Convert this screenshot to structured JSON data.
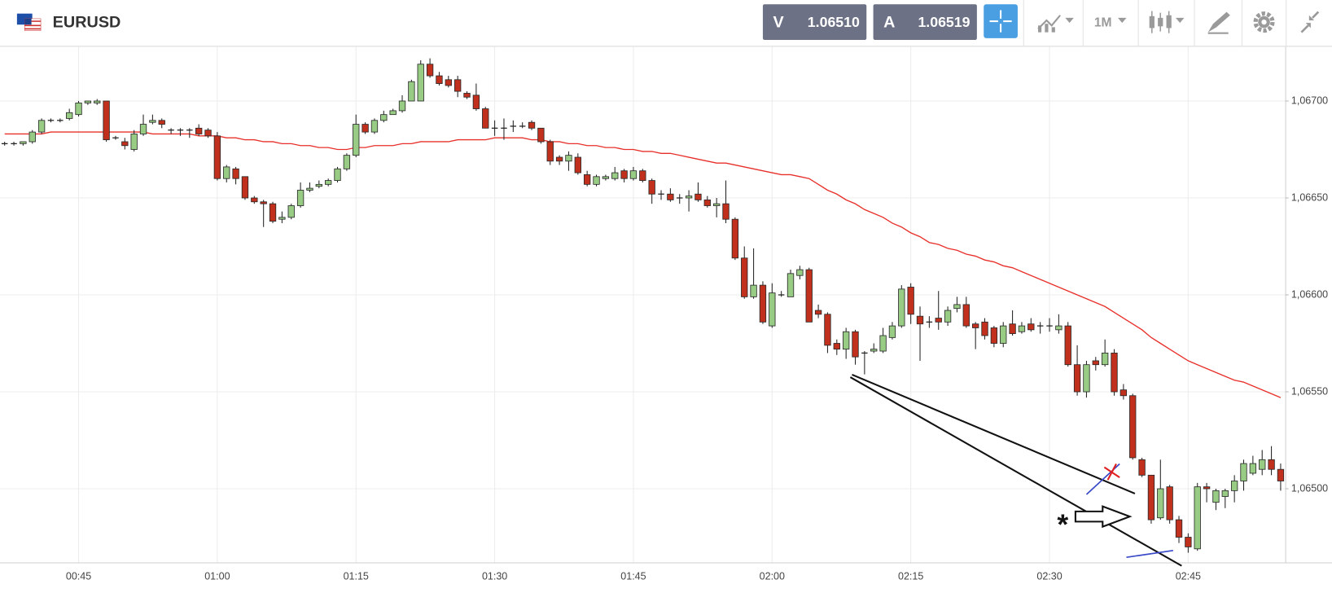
{
  "toolbar": {
    "symbol": "EURUSD",
    "sell_label": "V",
    "sell_price": "1.06510",
    "buy_label": "A",
    "buy_price": "1.06519",
    "timeframe": "1M"
  },
  "chart_data": {
    "type": "candlestick",
    "categories": [
      null,
      null,
      null,
      null,
      null,
      null,
      null,
      null,
      "00:45",
      null,
      null,
      null,
      null,
      null,
      null,
      null,
      null,
      null,
      null,
      null,
      null,
      null,
      null,
      "01:00",
      null,
      null,
      null,
      null,
      null,
      null,
      null,
      null,
      null,
      null,
      null,
      null,
      null,
      null,
      "01:15",
      null,
      null,
      null,
      null,
      null,
      null,
      null,
      null,
      null,
      null,
      null,
      null,
      null,
      null,
      "01:30",
      null,
      null,
      null,
      null,
      null,
      null,
      null,
      null,
      null,
      null,
      null,
      null,
      null,
      null,
      "01:45",
      null,
      null,
      null,
      null,
      null,
      null,
      null,
      null,
      null,
      null,
      null,
      null,
      null,
      null,
      "02:00",
      null,
      null,
      null,
      null,
      null,
      null,
      null,
      null,
      null,
      null,
      null,
      null,
      null,
      null,
      "02:15",
      null,
      null,
      null,
      null,
      null,
      null,
      null,
      null,
      null,
      null,
      null,
      null,
      null,
      null,
      "02:30",
      null,
      null,
      null,
      null,
      null,
      null,
      null,
      null,
      null,
      null,
      null,
      null,
      null,
      null,
      "02:45",
      null,
      null,
      null,
      null,
      null,
      null,
      null,
      null,
      null,
      null
    ],
    "open": [
      1.06678,
      1.06678,
      1.06678,
      1.06679,
      1.06684,
      1.0669,
      1.0669,
      1.06691,
      1.06693,
      1.06699,
      1.06699,
      1.067,
      1.06681,
      1.06679,
      1.06675,
      1.06683,
      1.06689,
      1.0669,
      1.06685,
      1.06685,
      1.06685,
      1.06686,
      1.06685,
      1.06682,
      1.0666,
      1.06665,
      1.06661,
      1.0665,
      1.06648,
      1.06647,
      1.06639,
      1.0664,
      1.06646,
      1.06654,
      1.06656,
      1.06657,
      1.06659,
      1.06665,
      1.06672,
      1.06688,
      1.06684,
      1.0669,
      1.06693,
      1.06695,
      1.067,
      1.067,
      1.06719,
      1.06713,
      1.06711,
      1.06711,
      1.06704,
      1.06703,
      1.06696,
      1.06686,
      1.06686,
      1.06687,
      1.06687,
      1.06689,
      1.06686,
      1.06679,
      1.06671,
      1.06669,
      1.06671,
      1.06662,
      1.06657,
      1.0666,
      1.0666,
      1.06664,
      1.0666,
      1.06664,
      1.06659,
      1.06652,
      1.06652,
      1.0665,
      1.0665,
      1.06652,
      1.06649,
      1.06646,
      1.06647,
      1.06639,
      1.06619,
      1.06599,
      1.06605,
      1.06584,
      1.066,
      1.06599,
      1.0661,
      1.06613,
      1.06592,
      1.0659,
      1.06575,
      1.06572,
      1.06581,
      1.0657,
      1.06571,
      1.06571,
      1.06578,
      1.06584,
      1.06604,
      1.06589,
      1.06586,
      1.06588,
      1.06586,
      1.06593,
      1.06595,
      1.06585,
      1.06586,
      1.06583,
      1.06575,
      1.06585,
      1.06581,
      1.06585,
      1.06584,
      1.06584,
      1.06582,
      1.06584,
      1.06564,
      1.0655,
      1.06566,
      1.06564,
      1.0657,
      1.06551,
      1.06548,
      1.06515,
      1.06507,
      1.06485,
      1.06501,
      1.06484,
      1.06475,
      1.06469,
      1.06501,
      1.06493,
      1.06496,
      1.06499,
      1.06504,
      1.06508,
      1.0651,
      1.06515,
      1.0651
    ],
    "high": [
      1.06679,
      1.06679,
      1.06679,
      1.06685,
      1.06691,
      1.06691,
      1.06691,
      1.06696,
      1.067,
      1.067,
      1.06701,
      1.067,
      1.06682,
      1.06681,
      1.06685,
      1.06693,
      1.06693,
      1.06691,
      1.06686,
      1.06686,
      1.06686,
      1.06688,
      1.06686,
      1.06684,
      1.06667,
      1.06666,
      1.06661,
      1.06651,
      1.06649,
      1.06648,
      1.06643,
      1.06647,
      1.06658,
      1.06658,
      1.06659,
      1.0666,
      1.06666,
      1.06673,
      1.06693,
      1.06689,
      1.06691,
      1.06695,
      1.06696,
      1.06703,
      1.06711,
      1.06721,
      1.06722,
      1.06715,
      1.06713,
      1.06713,
      1.06705,
      1.06709,
      1.06697,
      1.0669,
      1.06691,
      1.0669,
      1.06689,
      1.0669,
      1.06686,
      1.0668,
      1.06672,
      1.06674,
      1.06673,
      1.06664,
      1.06662,
      1.06662,
      1.06666,
      1.06665,
      1.06666,
      1.06665,
      1.0666,
      1.06654,
      1.06655,
      1.06652,
      1.06654,
      1.06658,
      1.06651,
      1.0665,
      1.06659,
      1.0664,
      1.06625,
      1.06624,
      1.06607,
      1.06606,
      1.06602,
      1.06613,
      1.06615,
      1.06614,
      1.06595,
      1.06591,
      1.06577,
      1.06583,
      1.06582,
      1.06571,
      1.06575,
      1.06583,
      1.06586,
      1.06605,
      1.06606,
      1.06594,
      1.06589,
      1.06602,
      1.06594,
      1.06599,
      1.06599,
      1.06586,
      1.06588,
      1.06584,
      1.06586,
      1.06592,
      1.06586,
      1.06588,
      1.06586,
      1.06588,
      1.0659,
      1.06586,
      1.06574,
      1.06566,
      1.06568,
      1.06577,
      1.06572,
      1.06554,
      1.06549,
      1.06516,
      1.06507,
      1.06515,
      1.06502,
      1.06486,
      1.06477,
      1.06503,
      1.06503,
      1.065,
      1.065,
      1.06507,
      1.06515,
      1.06517,
      1.0652,
      1.06522,
      1.06513
    ],
    "low": [
      1.06677,
      1.06677,
      1.06677,
      1.06678,
      1.06683,
      1.06689,
      1.06689,
      1.0669,
      1.06692,
      1.06698,
      1.06698,
      1.06679,
      1.0668,
      1.06675,
      1.06674,
      1.06682,
      1.06688,
      1.06686,
      1.06683,
      1.06682,
      1.06681,
      1.06682,
      1.06681,
      1.06659,
      1.06658,
      1.06657,
      1.06649,
      1.06647,
      1.06635,
      1.06637,
      1.06637,
      1.06639,
      1.06645,
      1.06653,
      1.06655,
      1.06656,
      1.06658,
      1.06664,
      1.06671,
      1.06683,
      1.06683,
      1.06689,
      1.06693,
      1.06694,
      1.067,
      1.067,
      1.06712,
      1.06708,
      1.06707,
      1.06702,
      1.06701,
      1.06695,
      1.06686,
      1.06682,
      1.0668,
      1.06684,
      1.06686,
      1.06685,
      1.06678,
      1.06667,
      1.06667,
      1.06664,
      1.06662,
      1.06656,
      1.06656,
      1.06659,
      1.06659,
      1.06658,
      1.06659,
      1.06658,
      1.06647,
      1.06649,
      1.06648,
      1.06647,
      1.06643,
      1.06648,
      1.06645,
      1.0664,
      1.06637,
      1.06618,
      1.06598,
      1.06598,
      1.06585,
      1.06583,
      1.06599,
      1.06599,
      1.06608,
      1.06586,
      1.06588,
      1.0657,
      1.06569,
      1.06567,
      1.06564,
      1.06559,
      1.0657,
      1.0657,
      1.06577,
      1.06583,
      1.06585,
      1.06566,
      1.06583,
      1.06582,
      1.06584,
      1.06591,
      1.06583,
      1.06572,
      1.06577,
      1.06573,
      1.06573,
      1.06579,
      1.0658,
      1.06581,
      1.0658,
      1.06581,
      1.0658,
      1.06563,
      1.06548,
      1.06547,
      1.06561,
      1.06563,
      1.06548,
      1.06546,
      1.06515,
      1.06506,
      1.06482,
      1.06484,
      1.06482,
      1.06472,
      1.06467,
      1.06468,
      1.06493,
      1.06489,
      1.0649,
      1.06493,
      1.06499,
      1.06507,
      1.06507,
      1.06507,
      1.06499
    ],
    "close": [
      1.06678,
      1.06678,
      1.06679,
      1.06684,
      1.0669,
      1.0669,
      1.0669,
      1.06694,
      1.06699,
      1.067,
      1.067,
      1.0668,
      1.06681,
      1.06677,
      1.06683,
      1.06688,
      1.0669,
      1.06688,
      1.06685,
      1.06685,
      1.06685,
      1.06683,
      1.06682,
      1.0666,
      1.06666,
      1.0666,
      1.0665,
      1.06648,
      1.06647,
      1.06638,
      1.0664,
      1.06646,
      1.06654,
      1.06655,
      1.06657,
      1.06659,
      1.06665,
      1.06672,
      1.06688,
      1.06684,
      1.0669,
      1.06693,
      1.06695,
      1.067,
      1.0671,
      1.06719,
      1.06713,
      1.06709,
      1.06708,
      1.06705,
      1.06702,
      1.06696,
      1.06686,
      1.06686,
      1.06686,
      1.06687,
      1.06687,
      1.06686,
      1.06679,
      1.06669,
      1.06669,
      1.06672,
      1.06663,
      1.06657,
      1.06661,
      1.06661,
      1.06663,
      1.0666,
      1.06664,
      1.06659,
      1.06652,
      1.06652,
      1.06649,
      1.0665,
      1.06651,
      1.06649,
      1.06646,
      1.06647,
      1.06639,
      1.06619,
      1.06599,
      1.06605,
      1.06586,
      1.06601,
      1.066,
      1.06611,
      1.06613,
      1.06586,
      1.0659,
      1.06574,
      1.06572,
      1.06581,
      1.06568,
      1.0657,
      1.06572,
      1.06579,
      1.06584,
      1.06603,
      1.0659,
      1.06585,
      1.06586,
      1.06586,
      1.06592,
      1.06595,
      1.06584,
      1.06583,
      1.06579,
      1.06575,
      1.06584,
      1.0658,
      1.06584,
      1.06582,
      1.06584,
      1.06584,
      1.06584,
      1.06564,
      1.0655,
      1.06564,
      1.06564,
      1.0657,
      1.0655,
      1.06548,
      1.06516,
      1.06507,
      1.06484,
      1.065,
      1.06484,
      1.06475,
      1.0647,
      1.06501,
      1.065,
      1.06499,
      1.06499,
      1.06504,
      1.06513,
      1.06513,
      1.06515,
      1.0651,
      1.06504
    ],
    "up_color": "#98cc85",
    "down_color": "#c0301c",
    "moving_average": {
      "color": "#e8302a",
      "values": [
        1.06683,
        1.06683,
        1.06683,
        1.06683,
        1.06683,
        1.06684,
        1.06684,
        1.06684,
        1.06684,
        1.06684,
        1.06684,
        1.06684,
        1.06684,
        1.06684,
        1.06684,
        1.06684,
        1.06683,
        1.06683,
        1.06683,
        1.06683,
        1.06683,
        1.06682,
        1.06682,
        1.06682,
        1.06681,
        1.06681,
        1.0668,
        1.0668,
        1.06679,
        1.06679,
        1.06678,
        1.06678,
        1.06677,
        1.06677,
        1.06676,
        1.06676,
        1.06675,
        1.06675,
        1.06676,
        1.06676,
        1.06677,
        1.06677,
        1.06677,
        1.06678,
        1.06678,
        1.06679,
        1.06679,
        1.06679,
        1.06679,
        1.0668,
        1.0668,
        1.0668,
        1.0668,
        1.06681,
        1.06681,
        1.06681,
        1.06681,
        1.0668,
        1.0668,
        1.06679,
        1.06679,
        1.06678,
        1.06678,
        1.06677,
        1.06677,
        1.06676,
        1.06676,
        1.06675,
        1.06675,
        1.06674,
        1.06674,
        1.06673,
        1.06673,
        1.06672,
        1.06671,
        1.0667,
        1.06669,
        1.06668,
        1.06668,
        1.06667,
        1.06666,
        1.06665,
        1.06664,
        1.06663,
        1.06662,
        1.06662,
        1.06661,
        1.0666,
        1.06657,
        1.06654,
        1.06652,
        1.06649,
        1.06647,
        1.06644,
        1.06642,
        1.0664,
        1.06637,
        1.06635,
        1.06632,
        1.0663,
        1.06627,
        1.06626,
        1.06624,
        1.06623,
        1.06621,
        1.0662,
        1.06618,
        1.06617,
        1.06615,
        1.06614,
        1.06612,
        1.0661,
        1.06608,
        1.06606,
        1.06604,
        1.06602,
        1.066,
        1.06598,
        1.06596,
        1.06594,
        1.06591,
        1.06588,
        1.06585,
        1.06582,
        1.06578,
        1.06575,
        1.06572,
        1.06569,
        1.06566,
        1.06564,
        1.06562,
        1.0656,
        1.06558,
        1.06556,
        1.06555,
        1.06553,
        1.06551,
        1.06549,
        1.06547
      ]
    },
    "ylim": [
      1.06462,
      1.06728
    ],
    "yticks": [
      {
        "value": 1.065,
        "label": "1,06500"
      },
      {
        "value": 1.0655,
        "label": "1,06550"
      },
      {
        "value": 1.066,
        "label": "1,06600"
      },
      {
        "value": 1.0665,
        "label": "1,06650"
      },
      {
        "value": 1.067,
        "label": "1,06700"
      }
    ],
    "grid": true,
    "y_axis_side": "right",
    "annotation": "*"
  }
}
